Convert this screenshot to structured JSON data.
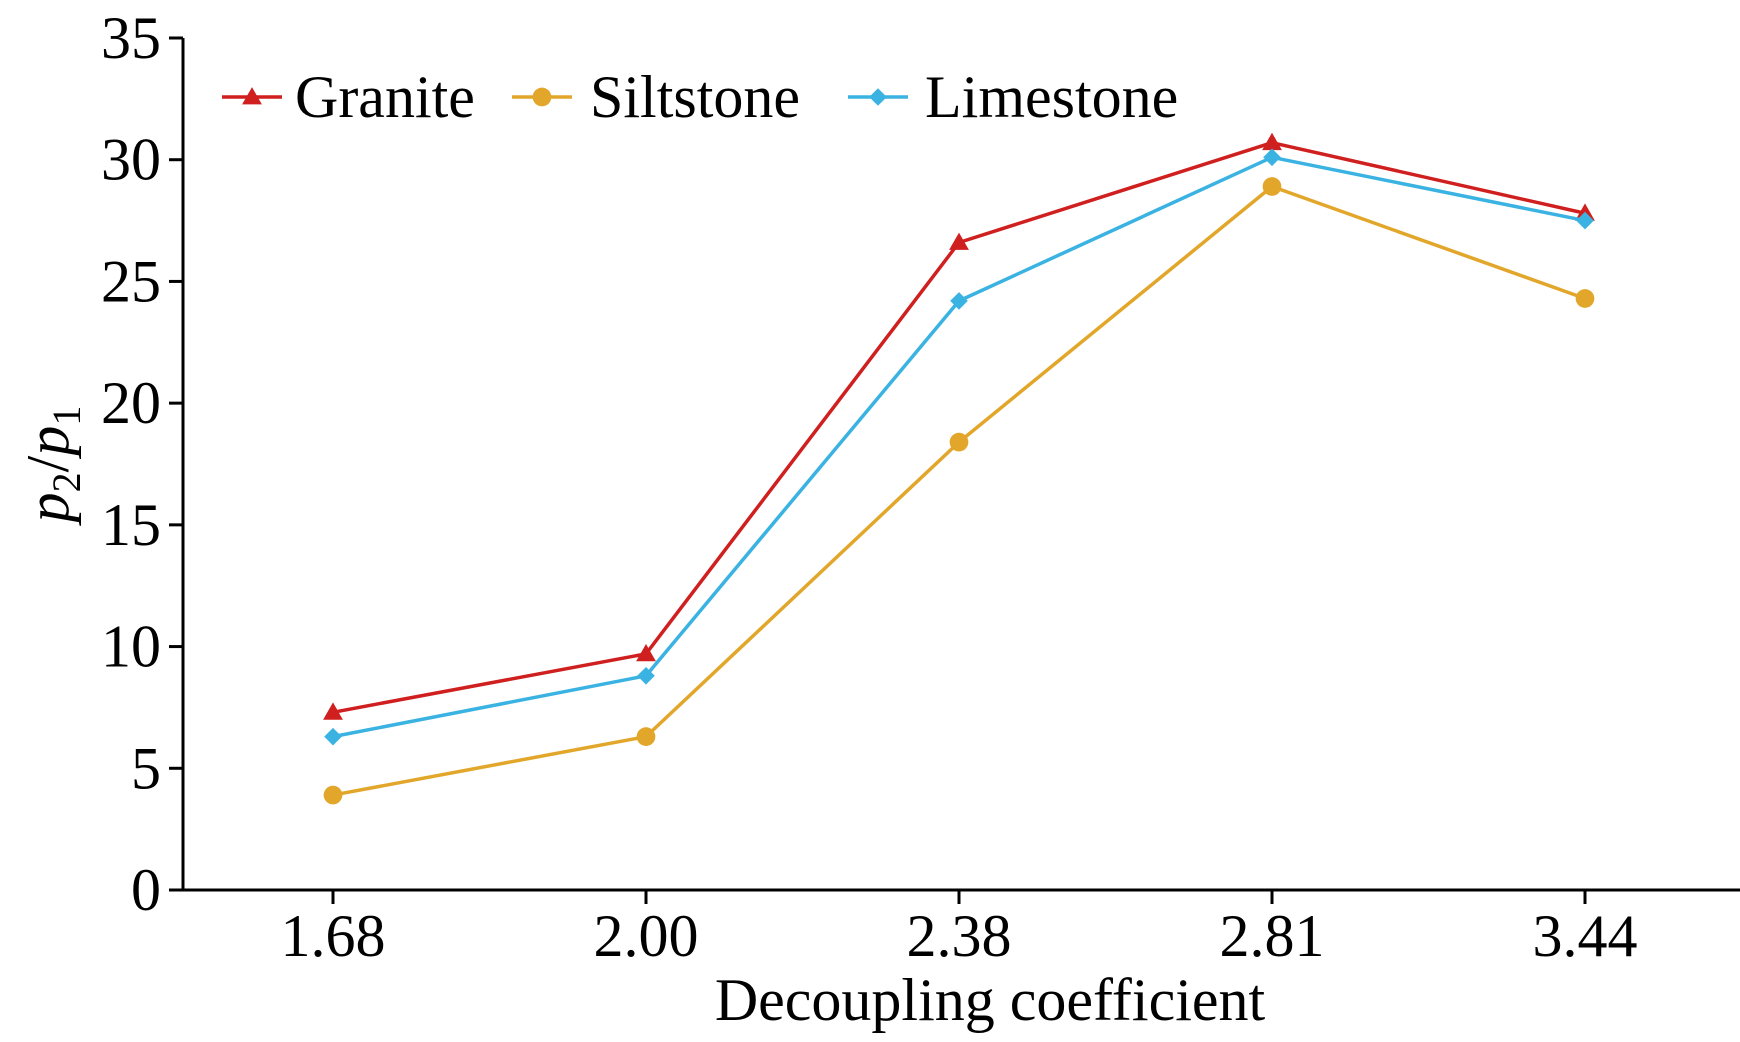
{
  "chart_data": {
    "type": "line",
    "title": "",
    "xlabel": "Decoupling coefficient",
    "ylabel": {
      "main1": "p",
      "sub1": "2",
      "slash": "/",
      "main2": "p",
      "sub2": "1"
    },
    "categories": [
      "1.68",
      "2.00",
      "2.38",
      "2.81",
      "3.44"
    ],
    "ylim": [
      0,
      35
    ],
    "yticks": [
      "0",
      "5",
      "10",
      "15",
      "20",
      "25",
      "30",
      "35"
    ],
    "grid": false,
    "legend_position": "top-left",
    "series": [
      {
        "name": "Granite",
        "color": "#d01f1f",
        "marker": "triangle",
        "values": [
          7.3,
          9.7,
          26.6,
          30.7,
          27.8
        ]
      },
      {
        "name": "Siltstone",
        "color": "#e2a72a",
        "marker": "circle",
        "values": [
          3.9,
          6.3,
          18.4,
          28.9,
          24.3
        ]
      },
      {
        "name": "Limestone",
        "color": "#3ab3e2",
        "marker": "diamond",
        "values": [
          6.3,
          8.8,
          24.2,
          30.1,
          27.5
        ]
      }
    ]
  }
}
